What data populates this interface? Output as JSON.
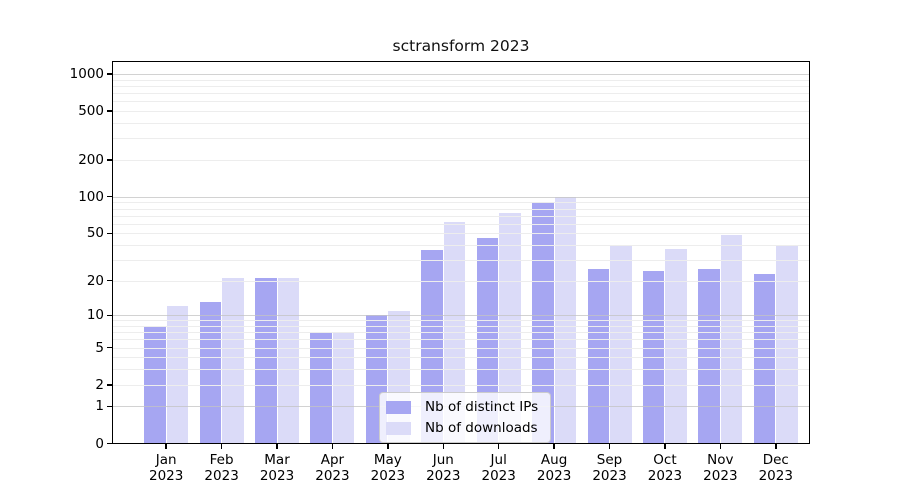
{
  "title": "sctransform 2023",
  "chart_data": {
    "type": "bar",
    "title": "sctransform 2023",
    "categories": [
      "Jan 2023",
      "Feb 2023",
      "Mar 2023",
      "Apr 2023",
      "May 2023",
      "Jun 2023",
      "Jul 2023",
      "Aug 2023",
      "Sep 2023",
      "Oct 2023",
      "Nov 2023",
      "Dec 2023"
    ],
    "series": [
      {
        "name": "Nb of distinct IPs",
        "color": "#a6a6f2",
        "values": [
          8,
          13,
          21,
          7,
          10,
          36,
          46,
          91,
          25,
          24,
          25,
          23
        ]
      },
      {
        "name": "Nb of downloads",
        "color": "#dbdbf8",
        "values": [
          12,
          21,
          21,
          7,
          11,
          62,
          73,
          100,
          39,
          37,
          48,
          40
        ]
      }
    ],
    "yscale": "log1p",
    "yticks": [
      0,
      1,
      2,
      5,
      10,
      20,
      50,
      100,
      200,
      500,
      1000
    ],
    "ylim": [
      0,
      1000
    ],
    "grid": true,
    "legend_position": "lower-center",
    "colors": {
      "axis": "#000000",
      "grid_major": "#c3c3c3",
      "grid_minor": "#ededed",
      "legend_border": "#cccccc"
    }
  }
}
